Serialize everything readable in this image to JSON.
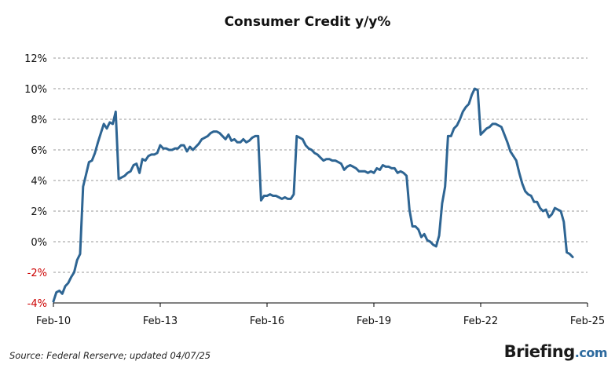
{
  "chart_data": {
    "type": "line",
    "title": "Consumer Credit y/y%",
    "xlabel": "",
    "ylabel": "",
    "x_tick_labels": [
      "Feb-10",
      "Feb-13",
      "Feb-16",
      "Feb-19",
      "Feb-22",
      "Feb-25"
    ],
    "x_range": [
      "2010-02",
      "2025-02"
    ],
    "y_tick_labels": [
      "-4%",
      "-2%",
      "0%",
      "2%",
      "4%",
      "6%",
      "8%",
      "10%",
      "12%"
    ],
    "ylim": [
      -4,
      12
    ],
    "grid": "horizontal dashed",
    "legend": "none",
    "series": [
      {
        "color": "#2e6593",
        "points": [
          [
            "2010-02",
            -3.9
          ],
          [
            "2010-03",
            -3.3
          ],
          [
            "2010-04",
            -3.2
          ],
          [
            "2010-05",
            -3.4
          ],
          [
            "2010-06",
            -2.9
          ],
          [
            "2010-07",
            -2.7
          ],
          [
            "2010-08",
            -2.3
          ],
          [
            "2010-09",
            -2.0
          ],
          [
            "2010-10",
            -1.2
          ],
          [
            "2010-11",
            -0.8
          ],
          [
            "2010-12",
            3.6
          ],
          [
            "2011-01",
            4.4
          ],
          [
            "2011-02",
            5.2
          ],
          [
            "2011-03",
            5.3
          ],
          [
            "2011-04",
            5.8
          ],
          [
            "2011-05",
            6.5
          ],
          [
            "2011-06",
            7.1
          ],
          [
            "2011-07",
            7.7
          ],
          [
            "2011-08",
            7.4
          ],
          [
            "2011-09",
            7.8
          ],
          [
            "2011-10",
            7.7
          ],
          [
            "2011-11",
            8.5
          ],
          [
            "2011-12",
            4.1
          ],
          [
            "2012-01",
            4.2
          ],
          [
            "2012-02",
            4.3
          ],
          [
            "2012-03",
            4.5
          ],
          [
            "2012-04",
            4.6
          ],
          [
            "2012-05",
            5.0
          ],
          [
            "2012-06",
            5.1
          ],
          [
            "2012-07",
            4.5
          ],
          [
            "2012-08",
            5.4
          ],
          [
            "2012-09",
            5.3
          ],
          [
            "2012-10",
            5.6
          ],
          [
            "2012-11",
            5.7
          ],
          [
            "2012-12",
            5.7
          ],
          [
            "2013-01",
            5.8
          ],
          [
            "2013-02",
            6.3
          ],
          [
            "2013-03",
            6.1
          ],
          [
            "2013-04",
            6.1
          ],
          [
            "2013-05",
            6.0
          ],
          [
            "2013-06",
            6.0
          ],
          [
            "2013-07",
            6.1
          ],
          [
            "2013-08",
            6.1
          ],
          [
            "2013-09",
            6.3
          ],
          [
            "2013-10",
            6.3
          ],
          [
            "2013-11",
            5.9
          ],
          [
            "2013-12",
            6.2
          ],
          [
            "2014-01",
            6.0
          ],
          [
            "2014-02",
            6.2
          ],
          [
            "2014-03",
            6.4
          ],
          [
            "2014-04",
            6.7
          ],
          [
            "2014-05",
            6.8
          ],
          [
            "2014-06",
            6.9
          ],
          [
            "2014-07",
            7.1
          ],
          [
            "2014-08",
            7.2
          ],
          [
            "2014-09",
            7.2
          ],
          [
            "2014-10",
            7.1
          ],
          [
            "2014-11",
            6.9
          ],
          [
            "2014-12",
            6.7
          ],
          [
            "2015-01",
            7.0
          ],
          [
            "2015-02",
            6.6
          ],
          [
            "2015-03",
            6.7
          ],
          [
            "2015-04",
            6.5
          ],
          [
            "2015-05",
            6.5
          ],
          [
            "2015-06",
            6.7
          ],
          [
            "2015-07",
            6.5
          ],
          [
            "2015-08",
            6.6
          ],
          [
            "2015-09",
            6.8
          ],
          [
            "2015-10",
            6.9
          ],
          [
            "2015-11",
            6.9
          ],
          [
            "2015-12",
            2.7
          ],
          [
            "2016-01",
            3.0
          ],
          [
            "2016-02",
            3.0
          ],
          [
            "2016-03",
            3.1
          ],
          [
            "2016-04",
            3.0
          ],
          [
            "2016-05",
            3.0
          ],
          [
            "2016-06",
            2.9
          ],
          [
            "2016-07",
            2.8
          ],
          [
            "2016-08",
            2.9
          ],
          [
            "2016-09",
            2.8
          ],
          [
            "2016-10",
            2.8
          ],
          [
            "2016-11",
            3.1
          ],
          [
            "2016-12",
            6.9
          ],
          [
            "2017-01",
            6.8
          ],
          [
            "2017-02",
            6.7
          ],
          [
            "2017-03",
            6.3
          ],
          [
            "2017-04",
            6.1
          ],
          [
            "2017-05",
            6.0
          ],
          [
            "2017-06",
            5.8
          ],
          [
            "2017-07",
            5.7
          ],
          [
            "2017-08",
            5.5
          ],
          [
            "2017-09",
            5.3
          ],
          [
            "2017-10",
            5.4
          ],
          [
            "2017-11",
            5.4
          ],
          [
            "2017-12",
            5.3
          ],
          [
            "2018-01",
            5.3
          ],
          [
            "2018-02",
            5.2
          ],
          [
            "2018-03",
            5.1
          ],
          [
            "2018-04",
            4.7
          ],
          [
            "2018-05",
            4.9
          ],
          [
            "2018-06",
            5.0
          ],
          [
            "2018-07",
            4.9
          ],
          [
            "2018-08",
            4.8
          ],
          [
            "2018-09",
            4.6
          ],
          [
            "2018-10",
            4.6
          ],
          [
            "2018-11",
            4.6
          ],
          [
            "2018-12",
            4.5
          ],
          [
            "2019-01",
            4.6
          ],
          [
            "2019-02",
            4.5
          ],
          [
            "2019-03",
            4.8
          ],
          [
            "2019-04",
            4.7
          ],
          [
            "2019-05",
            5.0
          ],
          [
            "2019-06",
            4.9
          ],
          [
            "2019-07",
            4.9
          ],
          [
            "2019-08",
            4.8
          ],
          [
            "2019-09",
            4.8
          ],
          [
            "2019-10",
            4.5
          ],
          [
            "2019-11",
            4.6
          ],
          [
            "2019-12",
            4.5
          ],
          [
            "2020-01",
            4.3
          ],
          [
            "2020-02",
            2.1
          ],
          [
            "2020-03",
            1.0
          ],
          [
            "2020-04",
            1.0
          ],
          [
            "2020-05",
            0.8
          ],
          [
            "2020-06",
            0.3
          ],
          [
            "2020-07",
            0.5
          ],
          [
            "2020-08",
            0.1
          ],
          [
            "2020-09",
            0.0
          ],
          [
            "2020-10",
            -0.2
          ],
          [
            "2020-11",
            -0.3
          ],
          [
            "2020-12",
            0.4
          ],
          [
            "2021-01",
            2.5
          ],
          [
            "2021-02",
            3.6
          ],
          [
            "2021-03",
            6.9
          ],
          [
            "2021-04",
            6.9
          ],
          [
            "2021-05",
            7.4
          ],
          [
            "2021-06",
            7.6
          ],
          [
            "2021-07",
            8.0
          ],
          [
            "2021-08",
            8.5
          ],
          [
            "2021-09",
            8.8
          ],
          [
            "2021-10",
            9.0
          ],
          [
            "2021-11",
            9.6
          ],
          [
            "2021-12",
            10.0
          ],
          [
            "2022-01",
            9.9
          ],
          [
            "2022-02",
            7.0
          ],
          [
            "2022-03",
            7.2
          ],
          [
            "2022-04",
            7.4
          ],
          [
            "2022-05",
            7.5
          ],
          [
            "2022-06",
            7.7
          ],
          [
            "2022-07",
            7.7
          ],
          [
            "2022-08",
            7.6
          ],
          [
            "2022-09",
            7.5
          ],
          [
            "2022-10",
            7.0
          ],
          [
            "2022-11",
            6.5
          ],
          [
            "2022-12",
            5.9
          ],
          [
            "2023-01",
            5.6
          ],
          [
            "2023-02",
            5.3
          ],
          [
            "2023-03",
            4.5
          ],
          [
            "2023-04",
            3.8
          ],
          [
            "2023-05",
            3.3
          ],
          [
            "2023-06",
            3.1
          ],
          [
            "2023-07",
            3.0
          ],
          [
            "2023-08",
            2.6
          ],
          [
            "2023-09",
            2.6
          ],
          [
            "2023-10",
            2.2
          ],
          [
            "2023-11",
            2.0
          ],
          [
            "2023-12",
            2.1
          ],
          [
            "2024-01",
            1.6
          ],
          [
            "2024-02",
            1.8
          ],
          [
            "2024-03",
            2.2
          ],
          [
            "2024-04",
            2.1
          ],
          [
            "2024-05",
            2.0
          ],
          [
            "2024-06",
            1.3
          ],
          [
            "2024-07",
            -0.7
          ],
          [
            "2024-08",
            -0.8
          ],
          [
            "2024-09",
            -1.0
          ]
        ]
      }
    ]
  },
  "footer": {
    "source": "Source: Federal Rerserve; updated 04/07/25",
    "brand": "Briefing",
    "brand_suffix": ".com"
  },
  "colors": {
    "line": "#2e6593",
    "negative_tick": "#cc0000",
    "grid": "#9a9a9a",
    "brand_accent": "#2d6a9e"
  }
}
